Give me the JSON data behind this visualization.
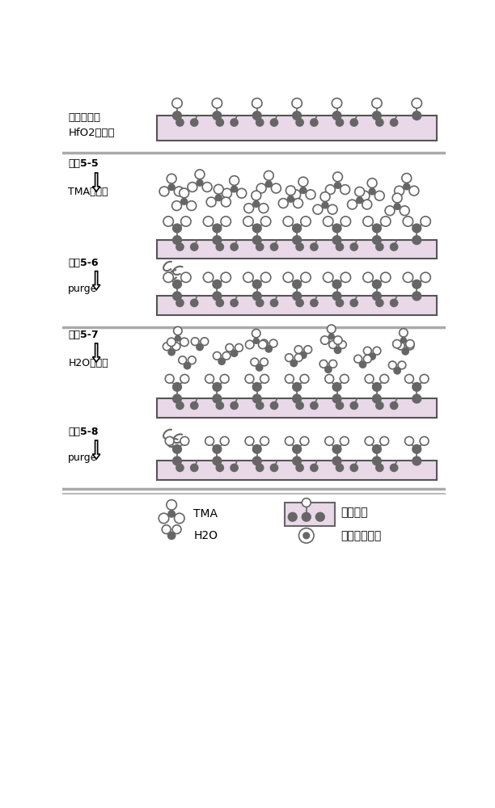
{
  "bg_color": "#ffffff",
  "substrate_color": "#e8d8e8",
  "substrate_border": "#555555",
  "dark_atom_color": "#666666",
  "light_atom_color": "#ffffff",
  "text_color": "#000000",
  "labels": {
    "panel0": "已完成单层\nHfO2的表面",
    "panel1_step": "步骤5-5",
    "panel1_label": "TMA的吸降",
    "panel2_step": "步骤5-6",
    "panel2_label": "purge",
    "panel3_step": "步骤5-7",
    "panel3_label": "H2O的吸降",
    "panel4_step": "步骤5-8",
    "panel4_label": "purge"
  },
  "legend": {
    "TMA": "TMA",
    "H2O": "H2O",
    "reaction_site": "反应位置",
    "reaction_gas": "反应气体产物"
  }
}
